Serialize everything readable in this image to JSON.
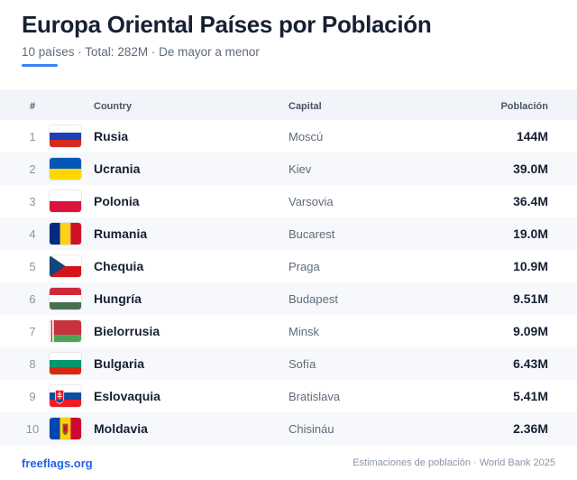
{
  "header": {
    "title": "Europa Oriental Países por Población",
    "subtitle": "10 países · Total: 282M · De mayor a menor"
  },
  "table": {
    "columns": {
      "rank": "#",
      "country": "Country",
      "capital": "Capital",
      "population": "Población"
    },
    "rows": [
      {
        "rank": "1",
        "flag": "russia-flag-icon",
        "country": "Rusia",
        "capital": "Moscú",
        "population": "144M"
      },
      {
        "rank": "2",
        "flag": "ukraine-flag-icon",
        "country": "Ucrania",
        "capital": "Kiev",
        "population": "39.0M"
      },
      {
        "rank": "3",
        "flag": "poland-flag-icon",
        "country": "Polonia",
        "capital": "Varsovia",
        "population": "36.4M"
      },
      {
        "rank": "4",
        "flag": "romania-flag-icon",
        "country": "Rumania",
        "capital": "Bucarest",
        "population": "19.0M"
      },
      {
        "rank": "5",
        "flag": "czechia-flag-icon",
        "country": "Chequia",
        "capital": "Praga",
        "population": "10.9M"
      },
      {
        "rank": "6",
        "flag": "hungary-flag-icon",
        "country": "Hungría",
        "capital": "Budapest",
        "population": "9.51M"
      },
      {
        "rank": "7",
        "flag": "belarus-flag-icon",
        "country": "Bielorrusia",
        "capital": "Minsk",
        "population": "9.09M"
      },
      {
        "rank": "8",
        "flag": "bulgaria-flag-icon",
        "country": "Bulgaria",
        "capital": "Sofía",
        "population": "6.43M"
      },
      {
        "rank": "9",
        "flag": "slovakia-flag-icon",
        "country": "Eslovaquia",
        "capital": "Bratislava",
        "population": "5.41M"
      },
      {
        "rank": "10",
        "flag": "moldova-flag-icon",
        "country": "Moldavia",
        "capital": "Chisináu",
        "population": "2.36M"
      }
    ]
  },
  "footer": {
    "link": "freeflags.org",
    "source": "Estimaciones de población · World Bank 2025"
  },
  "colors": {
    "accent": "#3b82f6",
    "link": "#2563eb",
    "header_bg": "#f1f4f8",
    "alt_row_bg": "#f6f8fb"
  }
}
